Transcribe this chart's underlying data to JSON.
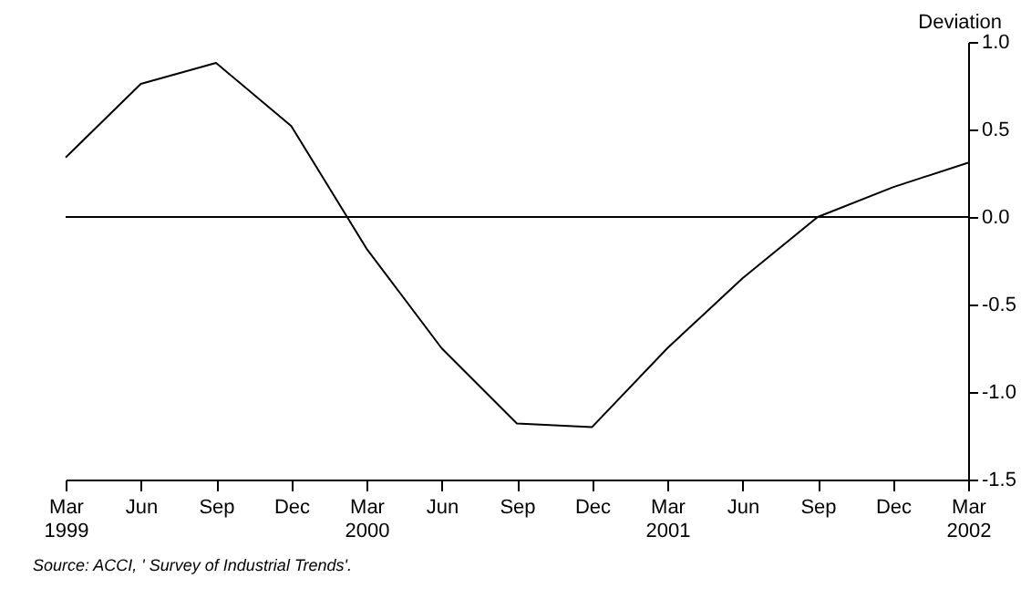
{
  "chart_data": {
    "type": "line",
    "ylabel": "Deviation",
    "categories": [
      "Mar 1999",
      "Jun",
      "Sep",
      "Dec",
      "Mar 2000",
      "Jun",
      "Sep",
      "Dec",
      "Mar 2001",
      "Jun",
      "Sep",
      "Dec",
      "Mar 2002"
    ],
    "series": [
      {
        "color": "#000000",
        "values": [
          0.34,
          0.76,
          0.88,
          0.52,
          -0.18,
          -0.75,
          -1.18,
          -1.2,
          -0.75,
          -0.35,
          0.0,
          0.17,
          0.31
        ]
      }
    ],
    "ylim": [
      -1.5,
      1.0
    ],
    "yticks": [
      {
        "value": -1.5,
        "label": "-1.5"
      },
      {
        "value": -1.0,
        "label": "-1.0"
      },
      {
        "value": -0.5,
        "label": "-0.5"
      },
      {
        "value": 0,
        "label": "0.0"
      },
      {
        "value": 0.5,
        "label": "0.5"
      },
      {
        "value": 1.0,
        "label": "1.0"
      }
    ],
    "ref_lines": [
      {
        "axis": "y",
        "value": 0,
        "color": "#000000"
      }
    ],
    "annotations": [
      "Source: ACCI, ' Survey of Industrial Trends'."
    ],
    "grid": false,
    "marker": "none",
    "line_style": "solid"
  }
}
